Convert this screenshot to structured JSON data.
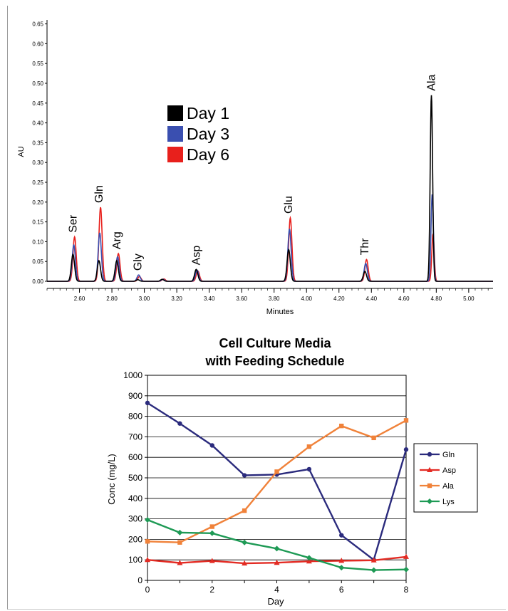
{
  "chart_data": [
    {
      "type": "line",
      "title": "",
      "xlabel": "Minutes",
      "ylabel": "AU",
      "xlim": [
        2.4,
        5.15
      ],
      "ylim": [
        0.0,
        0.66
      ],
      "x_ticks": [
        "2.60",
        "2.80",
        "3.00",
        "3.20",
        "3.40",
        "3.60",
        "3.80",
        "4.00",
        "4.20",
        "4.40",
        "4.60",
        "4.80",
        "5.00"
      ],
      "y_ticks": [
        "0.00",
        "0.05",
        "0.10",
        "0.15",
        "0.20",
        "0.25",
        "0.30",
        "0.35",
        "0.40",
        "0.45",
        "0.50",
        "0.55",
        "0.60",
        "0.65"
      ],
      "grid": false,
      "legend_position": "upper-left",
      "series": [
        {
          "name": "Day 1",
          "color": "#000000"
        },
        {
          "name": "Day 3",
          "color": "#3a4fb0"
        },
        {
          "name": "Day 6",
          "color": "#e8201c"
        }
      ],
      "peaks": [
        {
          "label": "Ser",
          "rt": 2.56,
          "heights": [
            0.068,
            0.092,
            0.112
          ]
        },
        {
          "label": "Gln",
          "rt": 2.72,
          "heights": [
            0.052,
            0.122,
            0.187
          ]
        },
        {
          "label": "Arg",
          "rt": 2.83,
          "heights": [
            0.052,
            0.062,
            0.07
          ]
        },
        {
          "label": "Gly",
          "rt": 2.96,
          "heights": [
            0.004,
            0.016,
            0.012
          ]
        },
        {
          "label": "",
          "rt": 3.11,
          "heights": [
            0.005,
            0.005,
            0.006
          ]
        },
        {
          "label": "Asp",
          "rt": 3.32,
          "heights": [
            0.03,
            0.028,
            0.026
          ]
        },
        {
          "label": "Glu",
          "rt": 3.89,
          "heights": [
            0.08,
            0.132,
            0.16
          ]
        },
        {
          "label": "Thr",
          "rt": 4.36,
          "heights": [
            0.025,
            0.045,
            0.055
          ]
        },
        {
          "label": "Ala",
          "rt": 4.77,
          "heights": [
            0.47,
            0.22,
            0.12
          ]
        }
      ]
    },
    {
      "type": "line",
      "title": "Cell Culture Media\nwith Feeding Schedule",
      "xlabel": "Day",
      "ylabel": "Conc (mg/L)",
      "xlim": [
        0,
        8
      ],
      "ylim": [
        0,
        1000
      ],
      "x": [
        0,
        1,
        2,
        3,
        4,
        5,
        6,
        7,
        8
      ],
      "grid": true,
      "legend_position": "right",
      "series": [
        {
          "name": "Gln",
          "color": "#2b2b7d",
          "marker": "circle",
          "values": [
            865,
            765,
            658,
            512,
            516,
            542,
            220,
            100,
            638
          ]
        },
        {
          "name": "Asp",
          "color": "#e32b23",
          "marker": "triangle",
          "values": [
            100,
            85,
            95,
            83,
            86,
            93,
            96,
            98,
            115
          ]
        },
        {
          "name": "Ala",
          "color": "#f0823a",
          "marker": "square",
          "values": [
            190,
            185,
            262,
            340,
            530,
            652,
            753,
            695,
            780
          ]
        },
        {
          "name": "Lys",
          "color": "#1e9a55",
          "marker": "diamond",
          "values": [
            295,
            233,
            230,
            185,
            155,
            110,
            62,
            50,
            53
          ]
        }
      ]
    }
  ]
}
